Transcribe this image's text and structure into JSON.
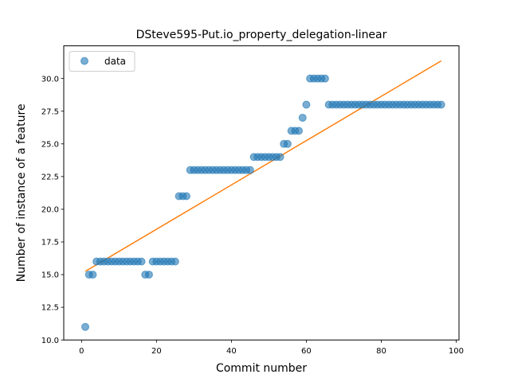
{
  "chart_data": {
    "type": "scatter",
    "title": "DSteve595-Put.io_property_delegation-linear",
    "xlabel": "Commit number",
    "ylabel": "Number of instance of a feature",
    "xlim": [
      -4.75,
      100.75
    ],
    "ylim": [
      10.0,
      32.5
    ],
    "xticks": [
      0,
      20,
      40,
      60,
      80,
      100
    ],
    "yticks": [
      10.0,
      12.5,
      15.0,
      17.5,
      20.0,
      22.5,
      25.0,
      27.5,
      30.0
    ],
    "xtick_labels": [
      "0",
      "20",
      "40",
      "60",
      "80",
      "100"
    ],
    "ytick_labels": [
      "10.0",
      "12.5",
      "15.0",
      "17.5",
      "20.0",
      "22.5",
      "25.0",
      "27.5",
      "30.0"
    ],
    "grid": false,
    "legend": {
      "position": "top-left",
      "entries": [
        "data"
      ]
    },
    "colors": {
      "data": "#1f77b4",
      "fit": "#ff7f0e"
    },
    "series": [
      {
        "name": "data",
        "kind": "scatter",
        "x": [
          1,
          2,
          3,
          4,
          5,
          6,
          7,
          8,
          9,
          10,
          11,
          12,
          13,
          14,
          15,
          16,
          17,
          18,
          19,
          20,
          21,
          22,
          23,
          24,
          25,
          26,
          27,
          28,
          29,
          30,
          31,
          32,
          33,
          34,
          35,
          36,
          37,
          38,
          39,
          40,
          41,
          42,
          43,
          44,
          45,
          46,
          47,
          48,
          49,
          50,
          51,
          52,
          53,
          54,
          55,
          56,
          57,
          58,
          59,
          60,
          61,
          62,
          63,
          64,
          65,
          66,
          67,
          68,
          69,
          70,
          71,
          72,
          73,
          74,
          75,
          76,
          77,
          78,
          79,
          80,
          81,
          82,
          83,
          84,
          85,
          86,
          87,
          88,
          89,
          90,
          91,
          92,
          93,
          94,
          95,
          96
        ],
        "y": [
          11,
          15,
          15,
          16,
          16,
          16,
          16,
          16,
          16,
          16,
          16,
          16,
          16,
          16,
          16,
          16,
          15,
          15,
          16,
          16,
          16,
          16,
          16,
          16,
          16,
          21,
          21,
          21,
          23,
          23,
          23,
          23,
          23,
          23,
          23,
          23,
          23,
          23,
          23,
          23,
          23,
          23,
          23,
          23,
          23,
          24,
          24,
          24,
          24,
          24,
          24,
          24,
          24,
          25,
          25,
          26,
          26,
          26,
          27,
          28,
          30,
          30,
          30,
          30,
          30,
          28,
          28,
          28,
          28,
          28,
          28,
          28,
          28,
          28,
          28,
          28,
          28,
          28,
          28,
          28,
          28,
          28,
          28,
          28,
          28,
          28,
          28,
          28,
          28,
          28,
          28,
          28,
          28,
          28,
          28,
          28
        ]
      },
      {
        "name": "",
        "kind": "line",
        "x": [
          1,
          96
        ],
        "y": [
          15.25,
          31.35
        ]
      }
    ]
  }
}
